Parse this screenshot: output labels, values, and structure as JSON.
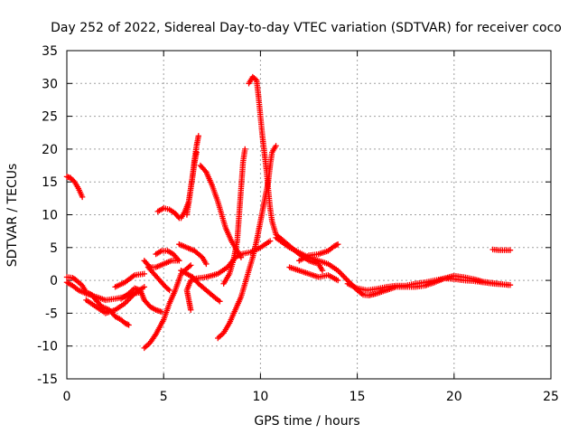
{
  "chart_data": {
    "type": "scatter",
    "title": "Day 252 of 2022, Sidereal Day-to-day VTEC variation (SDTVAR) for receiver coco",
    "xlabel": "GPS time / hours",
    "ylabel": "SDTVAR / TECUs",
    "xlim": [
      0,
      25
    ],
    "ylim": [
      -15,
      35
    ],
    "xticks": [
      0,
      5,
      10,
      15,
      20,
      25
    ],
    "yticks": [
      -15,
      -10,
      -5,
      0,
      5,
      10,
      15,
      20,
      25,
      30,
      35
    ],
    "grid": true,
    "legend": "none",
    "marker": "+",
    "color": "#ff0000",
    "series": [
      {
        "name": "s1",
        "points": [
          [
            0.0,
            15.8
          ],
          [
            0.2,
            15.6
          ],
          [
            0.4,
            15.0
          ],
          [
            0.6,
            14.0
          ],
          [
            0.8,
            12.7
          ]
        ]
      },
      {
        "name": "s2",
        "points": [
          [
            0.0,
            0.5
          ],
          [
            0.3,
            0.4
          ],
          [
            0.5,
            0.0
          ],
          [
            0.8,
            -0.8
          ],
          [
            1.0,
            -1.8
          ],
          [
            1.3,
            -2.2
          ],
          [
            1.5,
            -3.0
          ],
          [
            1.8,
            -4.0
          ],
          [
            2.2,
            -4.5
          ],
          [
            2.5,
            -5.5
          ],
          [
            2.8,
            -6.0
          ],
          [
            3.0,
            -6.5
          ],
          [
            3.2,
            -6.8
          ]
        ]
      },
      {
        "name": "s3",
        "points": [
          [
            0.0,
            -0.3
          ],
          [
            0.3,
            -0.8
          ],
          [
            0.6,
            -1.5
          ],
          [
            1.0,
            -2.0
          ],
          [
            1.5,
            -2.5
          ],
          [
            2.0,
            -3.0
          ],
          [
            2.5,
            -2.8
          ],
          [
            3.0,
            -2.5
          ],
          [
            3.5,
            -2.0
          ],
          [
            3.8,
            -1.8
          ]
        ]
      },
      {
        "name": "s4",
        "points": [
          [
            1.0,
            -3.0
          ],
          [
            1.5,
            -4.0
          ],
          [
            2.0,
            -5.0
          ],
          [
            2.5,
            -4.5
          ],
          [
            3.0,
            -3.5
          ],
          [
            3.5,
            -2.0
          ],
          [
            4.0,
            -1.0
          ]
        ]
      },
      {
        "name": "s5",
        "points": [
          [
            2.5,
            -1.0
          ],
          [
            3.0,
            -0.3
          ],
          [
            3.5,
            0.8
          ],
          [
            4.0,
            1.0
          ]
        ]
      },
      {
        "name": "s6",
        "points": [
          [
            2.8,
            -2.8
          ],
          [
            3.2,
            -2.0
          ],
          [
            3.5,
            -1.2
          ],
          [
            3.8,
            -1.5
          ],
          [
            4.0,
            -3.0
          ],
          [
            4.3,
            -4.0
          ],
          [
            4.6,
            -4.5
          ],
          [
            4.9,
            -4.8
          ]
        ]
      },
      {
        "name": "s7",
        "points": [
          [
            4.0,
            -10.3
          ],
          [
            4.3,
            -9.5
          ],
          [
            4.6,
            -8.2
          ],
          [
            5.0,
            -6.0
          ],
          [
            5.3,
            -3.5
          ],
          [
            5.6,
            -1.5
          ],
          [
            5.9,
            1.0
          ],
          [
            6.2,
            1.8
          ],
          [
            6.4,
            2.3
          ]
        ]
      },
      {
        "name": "s8",
        "points": [
          [
            4.0,
            3.0
          ],
          [
            4.3,
            2.0
          ],
          [
            4.6,
            2.0
          ],
          [
            5.0,
            2.5
          ],
          [
            5.4,
            3.0
          ],
          [
            5.7,
            3.0
          ]
        ]
      },
      {
        "name": "s9",
        "points": [
          [
            4.2,
            2.0
          ],
          [
            4.5,
            1.0
          ],
          [
            4.8,
            0.0
          ],
          [
            5.1,
            -1.0
          ],
          [
            5.3,
            -1.5
          ]
        ]
      },
      {
        "name": "s10",
        "points": [
          [
            4.6,
            4.0
          ],
          [
            4.9,
            4.5
          ],
          [
            5.2,
            4.5
          ],
          [
            5.5,
            4.0
          ],
          [
            5.8,
            3.0
          ]
        ]
      },
      {
        "name": "s11",
        "points": [
          [
            4.7,
            10.5
          ],
          [
            5.0,
            11.0
          ],
          [
            5.3,
            10.8
          ],
          [
            5.6,
            10.2
          ],
          [
            5.8,
            9.5
          ]
        ]
      },
      {
        "name": "s12",
        "points": [
          [
            5.9,
            9.5
          ],
          [
            6.1,
            10.5
          ],
          [
            6.3,
            12.0
          ],
          [
            6.4,
            14.0
          ],
          [
            6.5,
            16.0
          ],
          [
            6.6,
            18.5
          ],
          [
            6.7,
            20.5
          ],
          [
            6.8,
            22.0
          ]
        ]
      },
      {
        "name": "s13",
        "points": [
          [
            6.2,
            10.0
          ],
          [
            6.3,
            12.0
          ],
          [
            6.4,
            14.0
          ],
          [
            6.5,
            16.0
          ],
          [
            6.6,
            18.0
          ],
          [
            6.7,
            19.5
          ]
        ]
      },
      {
        "name": "s14",
        "points": [
          [
            5.9,
            1.5
          ],
          [
            6.2,
            1.0
          ],
          [
            6.5,
            0.5
          ],
          [
            6.8,
            -0.5
          ],
          [
            7.2,
            -1.5
          ],
          [
            7.6,
            -2.5
          ],
          [
            7.9,
            -3.2
          ]
        ]
      },
      {
        "name": "s15",
        "points": [
          [
            6.4,
            -4.5
          ],
          [
            6.3,
            -3.0
          ],
          [
            6.2,
            -1.5
          ],
          [
            6.4,
            0.0
          ],
          [
            6.7,
            0.3
          ],
          [
            7.2,
            0.5
          ],
          [
            7.8,
            1.0
          ],
          [
            8.3,
            2.0
          ],
          [
            8.7,
            3.5
          ],
          [
            9.0,
            4.0
          ],
          [
            9.5,
            4.3
          ],
          [
            10.0,
            5.0
          ],
          [
            10.5,
            6.0
          ]
        ]
      },
      {
        "name": "s16",
        "points": [
          [
            5.8,
            5.5
          ],
          [
            6.2,
            5.0
          ],
          [
            6.6,
            4.5
          ],
          [
            7.0,
            3.5
          ],
          [
            7.2,
            2.5
          ]
        ]
      },
      {
        "name": "s17",
        "points": [
          [
            6.9,
            17.5
          ],
          [
            7.2,
            16.5
          ],
          [
            7.5,
            14.5
          ],
          [
            7.8,
            12.0
          ],
          [
            8.0,
            10.0
          ],
          [
            8.2,
            8.0
          ],
          [
            8.5,
            6.0
          ],
          [
            8.8,
            4.5
          ],
          [
            9.0,
            3.5
          ]
        ]
      },
      {
        "name": "s18",
        "points": [
          [
            7.8,
            -8.8
          ],
          [
            8.1,
            -8.0
          ],
          [
            8.4,
            -6.5
          ],
          [
            8.7,
            -4.5
          ],
          [
            9.0,
            -2.5
          ],
          [
            9.2,
            -0.5
          ],
          [
            9.4,
            1.5
          ],
          [
            9.6,
            3.5
          ],
          [
            9.8,
            6.0
          ],
          [
            10.0,
            9.0
          ],
          [
            10.2,
            12.0
          ],
          [
            10.4,
            15.0
          ],
          [
            10.5,
            17.5
          ],
          [
            10.6,
            19.5
          ],
          [
            10.8,
            20.5
          ]
        ]
      },
      {
        "name": "s19",
        "points": [
          [
            8.1,
            -0.5
          ],
          [
            8.4,
            1.0
          ],
          [
            8.6,
            3.0
          ],
          [
            8.8,
            6.0
          ],
          [
            8.9,
            10.0
          ],
          [
            9.0,
            14.0
          ],
          [
            9.1,
            18.0
          ],
          [
            9.2,
            20.0
          ]
        ]
      },
      {
        "name": "s20",
        "points": [
          [
            9.4,
            30.0
          ],
          [
            9.6,
            31.0
          ],
          [
            9.8,
            30.5
          ],
          [
            9.9,
            28.0
          ],
          [
            10.0,
            25.0
          ],
          [
            10.1,
            22.0
          ],
          [
            10.2,
            19.5
          ],
          [
            10.3,
            17.0
          ],
          [
            10.4,
            14.0
          ],
          [
            10.5,
            11.0
          ],
          [
            10.6,
            9.0
          ],
          [
            10.8,
            7.0
          ],
          [
            11.2,
            6.0
          ],
          [
            11.6,
            5.0
          ],
          [
            12.0,
            4.0
          ],
          [
            12.5,
            3.0
          ],
          [
            13.0,
            2.5
          ],
          [
            13.2,
            1.5
          ]
        ]
      },
      {
        "name": "s21",
        "points": [
          [
            12.0,
            3.0
          ],
          [
            12.5,
            3.8
          ],
          [
            13.0,
            4.0
          ],
          [
            13.5,
            4.5
          ],
          [
            13.8,
            5.2
          ],
          [
            14.0,
            5.5
          ]
        ]
      },
      {
        "name": "s22",
        "points": [
          [
            11.5,
            2.0
          ],
          [
            12.0,
            1.5
          ],
          [
            12.5,
            1.0
          ],
          [
            13.0,
            0.5
          ],
          [
            13.5,
            0.8
          ],
          [
            14.0,
            0.0
          ]
        ]
      },
      {
        "name": "s23",
        "points": [
          [
            10.8,
            6.5
          ],
          [
            11.5,
            5.0
          ],
          [
            12.5,
            3.5
          ],
          [
            13.5,
            2.5
          ],
          [
            14.0,
            1.5
          ],
          [
            14.5,
            0.0
          ],
          [
            15.0,
            -1.5
          ],
          [
            15.3,
            -2.2
          ],
          [
            15.6,
            -2.3
          ],
          [
            16.0,
            -2.0
          ],
          [
            16.5,
            -1.5
          ],
          [
            17.0,
            -1.0
          ],
          [
            17.5,
            -1.0
          ],
          [
            18.0,
            -1.0
          ],
          [
            18.5,
            -0.8
          ],
          [
            19.0,
            -0.3
          ],
          [
            19.5,
            0.3
          ],
          [
            20.0,
            0.7
          ],
          [
            20.5,
            0.5
          ],
          [
            21.0,
            0.2
          ],
          [
            21.5,
            -0.2
          ],
          [
            22.0,
            -0.4
          ],
          [
            22.5,
            -0.6
          ],
          [
            22.9,
            -0.7
          ]
        ]
      },
      {
        "name": "s24",
        "points": [
          [
            14.5,
            -0.5
          ],
          [
            15.0,
            -1.2
          ],
          [
            15.5,
            -1.5
          ],
          [
            16.0,
            -1.3
          ],
          [
            16.5,
            -1.0
          ],
          [
            17.0,
            -0.8
          ],
          [
            17.5,
            -0.8
          ],
          [
            18.0,
            -0.5
          ],
          [
            18.5,
            -0.3
          ],
          [
            19.0,
            0.0
          ],
          [
            19.5,
            0.3
          ],
          [
            20.0,
            0.2
          ],
          [
            20.5,
            0.0
          ],
          [
            21.0,
            -0.1
          ],
          [
            21.5,
            -0.3
          ],
          [
            22.0,
            -0.5
          ],
          [
            22.5,
            -0.6
          ],
          [
            22.8,
            -0.7
          ]
        ]
      },
      {
        "name": "s25",
        "points": [
          [
            22.0,
            4.7
          ],
          [
            22.3,
            4.6
          ],
          [
            22.6,
            4.6
          ],
          [
            22.9,
            4.6
          ]
        ]
      }
    ]
  }
}
